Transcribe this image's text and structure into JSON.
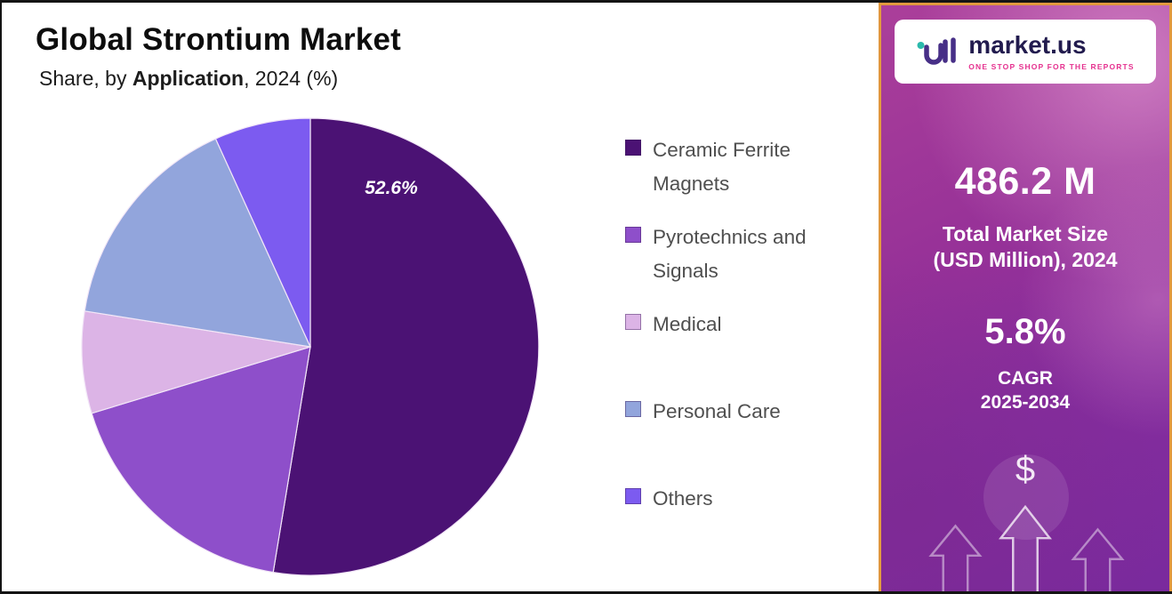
{
  "header": {
    "title": "Global Strontium Market",
    "subtitle_prefix": "Share, by ",
    "subtitle_bold": "Application",
    "subtitle_suffix": ", 2024 (%)"
  },
  "chart_data": {
    "type": "pie",
    "title": "Global Strontium Market Share, by Application, 2024 (%)",
    "categories": [
      "Ceramic Ferrite Magnets",
      "Pyrotechnics and Signals",
      "Medical",
      "Personal Care",
      "Others"
    ],
    "values": [
      52.6,
      17.7,
      7.2,
      15.7,
      6.8
    ],
    "colors": [
      "#4b1274",
      "#8e4fca",
      "#dcb4e6",
      "#92a5dc",
      "#7c5bf0"
    ],
    "start_angle_deg": 0,
    "direction": "clockwise",
    "labeled_slice": {
      "index": 0,
      "label": "52.6%"
    },
    "legend_position": "right"
  },
  "sidebar": {
    "logo": {
      "brand": "market.us",
      "tagline": "ONE STOP SHOP FOR THE REPORTS"
    },
    "market_size_value": "486.2 M",
    "market_size_label_line1": "Total Market Size",
    "market_size_label_line2": "(USD Million), 2024",
    "cagr_value": "5.8%",
    "cagr_label_line1": "CAGR",
    "cagr_label_line2": "2025-2034",
    "dollar_symbol": "$"
  },
  "colors": {
    "sidebar_border": "#e1993e",
    "accent_pink": "#e5318f",
    "brand_navy": "#221b4e",
    "logo_teal": "#2bb9ac"
  }
}
